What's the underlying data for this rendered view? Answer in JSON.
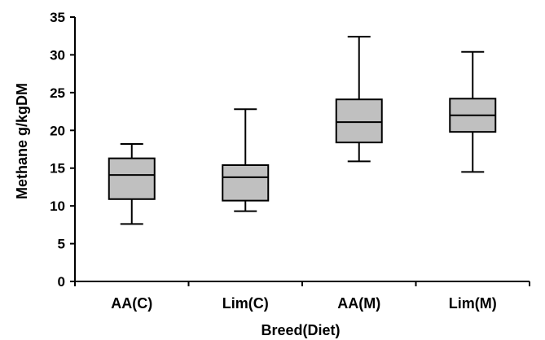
{
  "chart_data": {
    "type": "boxplot",
    "title": "",
    "xlabel": "Breed(Diet)",
    "ylabel": "Methane g/kgDM",
    "ylim": [
      0,
      35
    ],
    "yticks": [
      0,
      5,
      10,
      15,
      20,
      25,
      30,
      35
    ],
    "grid": false,
    "legend": "none",
    "categories": [
      "AA(C)",
      "Lim(C)",
      "AA(M)",
      "Lim(M)"
    ],
    "boxes": [
      {
        "category": "AA(C)",
        "min": 7.6,
        "q1": 10.9,
        "median": 14.1,
        "q3": 16.3,
        "max": 18.2
      },
      {
        "category": "Lim(C)",
        "min": 9.3,
        "q1": 10.7,
        "median": 13.8,
        "q3": 15.4,
        "max": 22.8
      },
      {
        "category": "AA(M)",
        "min": 15.9,
        "q1": 18.4,
        "median": 21.1,
        "q3": 24.1,
        "max": 32.4
      },
      {
        "category": "Lim(M)",
        "min": 14.5,
        "q1": 19.8,
        "median": 22.0,
        "q3": 24.2,
        "max": 30.4
      }
    ],
    "box_fill": "#c0c0c0",
    "line_color": "#000000"
  }
}
